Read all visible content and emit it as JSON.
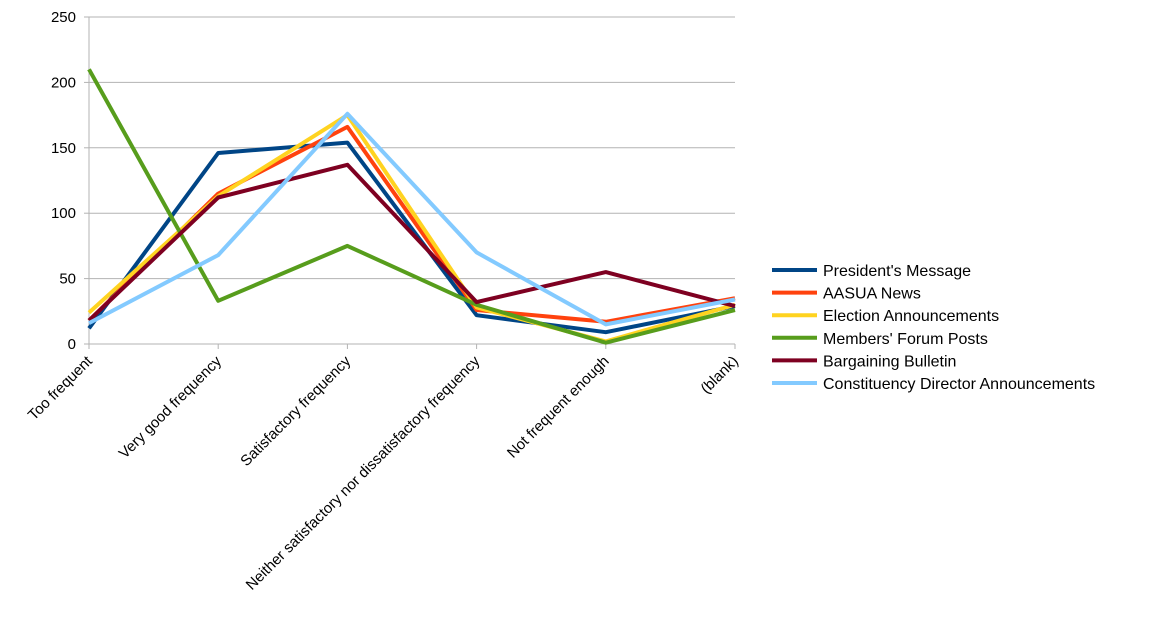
{
  "chart_data": {
    "type": "line",
    "title": "",
    "xlabel": "",
    "ylabel": "",
    "ylim": [
      0,
      250
    ],
    "yticks": [
      0,
      50,
      100,
      150,
      200,
      250
    ],
    "grid": true,
    "legend_position": "right",
    "categories": [
      "Too frequent",
      "Very good frequency",
      "Satisfactory frequency",
      "Neither satisfactory nor dissatisfactory frequency",
      "Not frequent enough",
      "(blank)"
    ],
    "series": [
      {
        "name": "President's Message",
        "color": "#004586",
        "values": [
          12,
          146,
          154,
          22,
          9,
          29
        ]
      },
      {
        "name": "AASUA News",
        "color": "#ff420e",
        "values": [
          18,
          115,
          166,
          26,
          17,
          35
        ]
      },
      {
        "name": "Election Announcements",
        "color": "#ffd320",
        "values": [
          24,
          113,
          175,
          28,
          2,
          30
        ]
      },
      {
        "name": "Members' Forum Posts",
        "color": "#579d1c",
        "values": [
          210,
          33,
          75,
          30,
          1,
          26
        ]
      },
      {
        "name": "Bargaining Bulletin",
        "color": "#7e0021",
        "values": [
          18,
          112,
          137,
          32,
          55,
          29
        ]
      },
      {
        "name": "Constituency Director Announcements",
        "color": "#83caff",
        "values": [
          16,
          68,
          176,
          70,
          15,
          34
        ]
      }
    ]
  }
}
